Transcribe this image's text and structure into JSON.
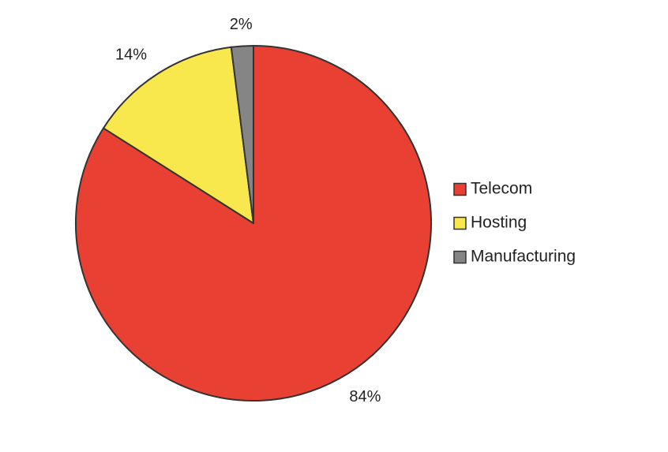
{
  "chart_data": {
    "type": "pie",
    "start_angle_deg": 0,
    "direction": "clockwise",
    "slices": [
      {
        "label": "Telecom",
        "value": 84,
        "display": "84%",
        "color": "#E84133"
      },
      {
        "label": "Hosting",
        "value": 14,
        "display": "14%",
        "color": "#F8E84E"
      },
      {
        "label": "Manufacturing",
        "value": 2,
        "display": "2%",
        "color": "#858585"
      }
    ],
    "legend": {
      "position": "right"
    },
    "outline_color": "#333333"
  }
}
